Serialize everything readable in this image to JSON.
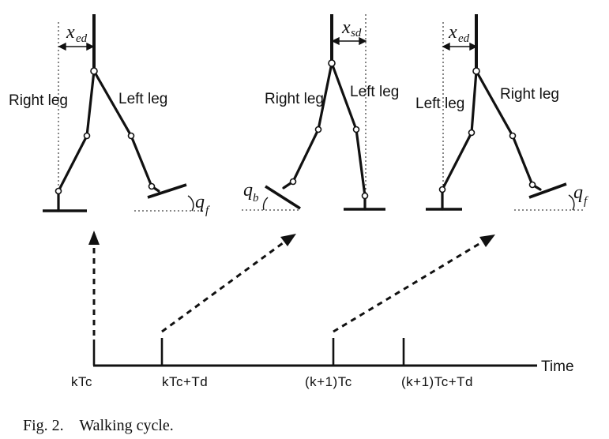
{
  "figure": {
    "poses": [
      {
        "back_leg_label": "Right leg",
        "front_leg_label": "Left leg",
        "offset": {
          "symbol": "x",
          "sub": "ed"
        },
        "angle": {
          "symbol": "q",
          "sub": "f"
        }
      },
      {
        "back_leg_label": "Right leg",
        "front_leg_label": "Left leg",
        "offset": {
          "symbol": "x",
          "sub": "sd"
        },
        "angle": {
          "symbol": "q",
          "sub": "b"
        }
      },
      {
        "back_leg_label": "Left leg",
        "front_leg_label": "Right leg",
        "offset": {
          "symbol": "x",
          "sub": "ed"
        },
        "angle": {
          "symbol": "q",
          "sub": "f"
        }
      }
    ],
    "timeline": {
      "axis_label": "Time",
      "ticks": [
        "kTc",
        "kTc+Td",
        "(k+1)Tc",
        "(k+1)Tc+Td"
      ]
    },
    "caption": "Fig. 2.    Walking cycle."
  }
}
